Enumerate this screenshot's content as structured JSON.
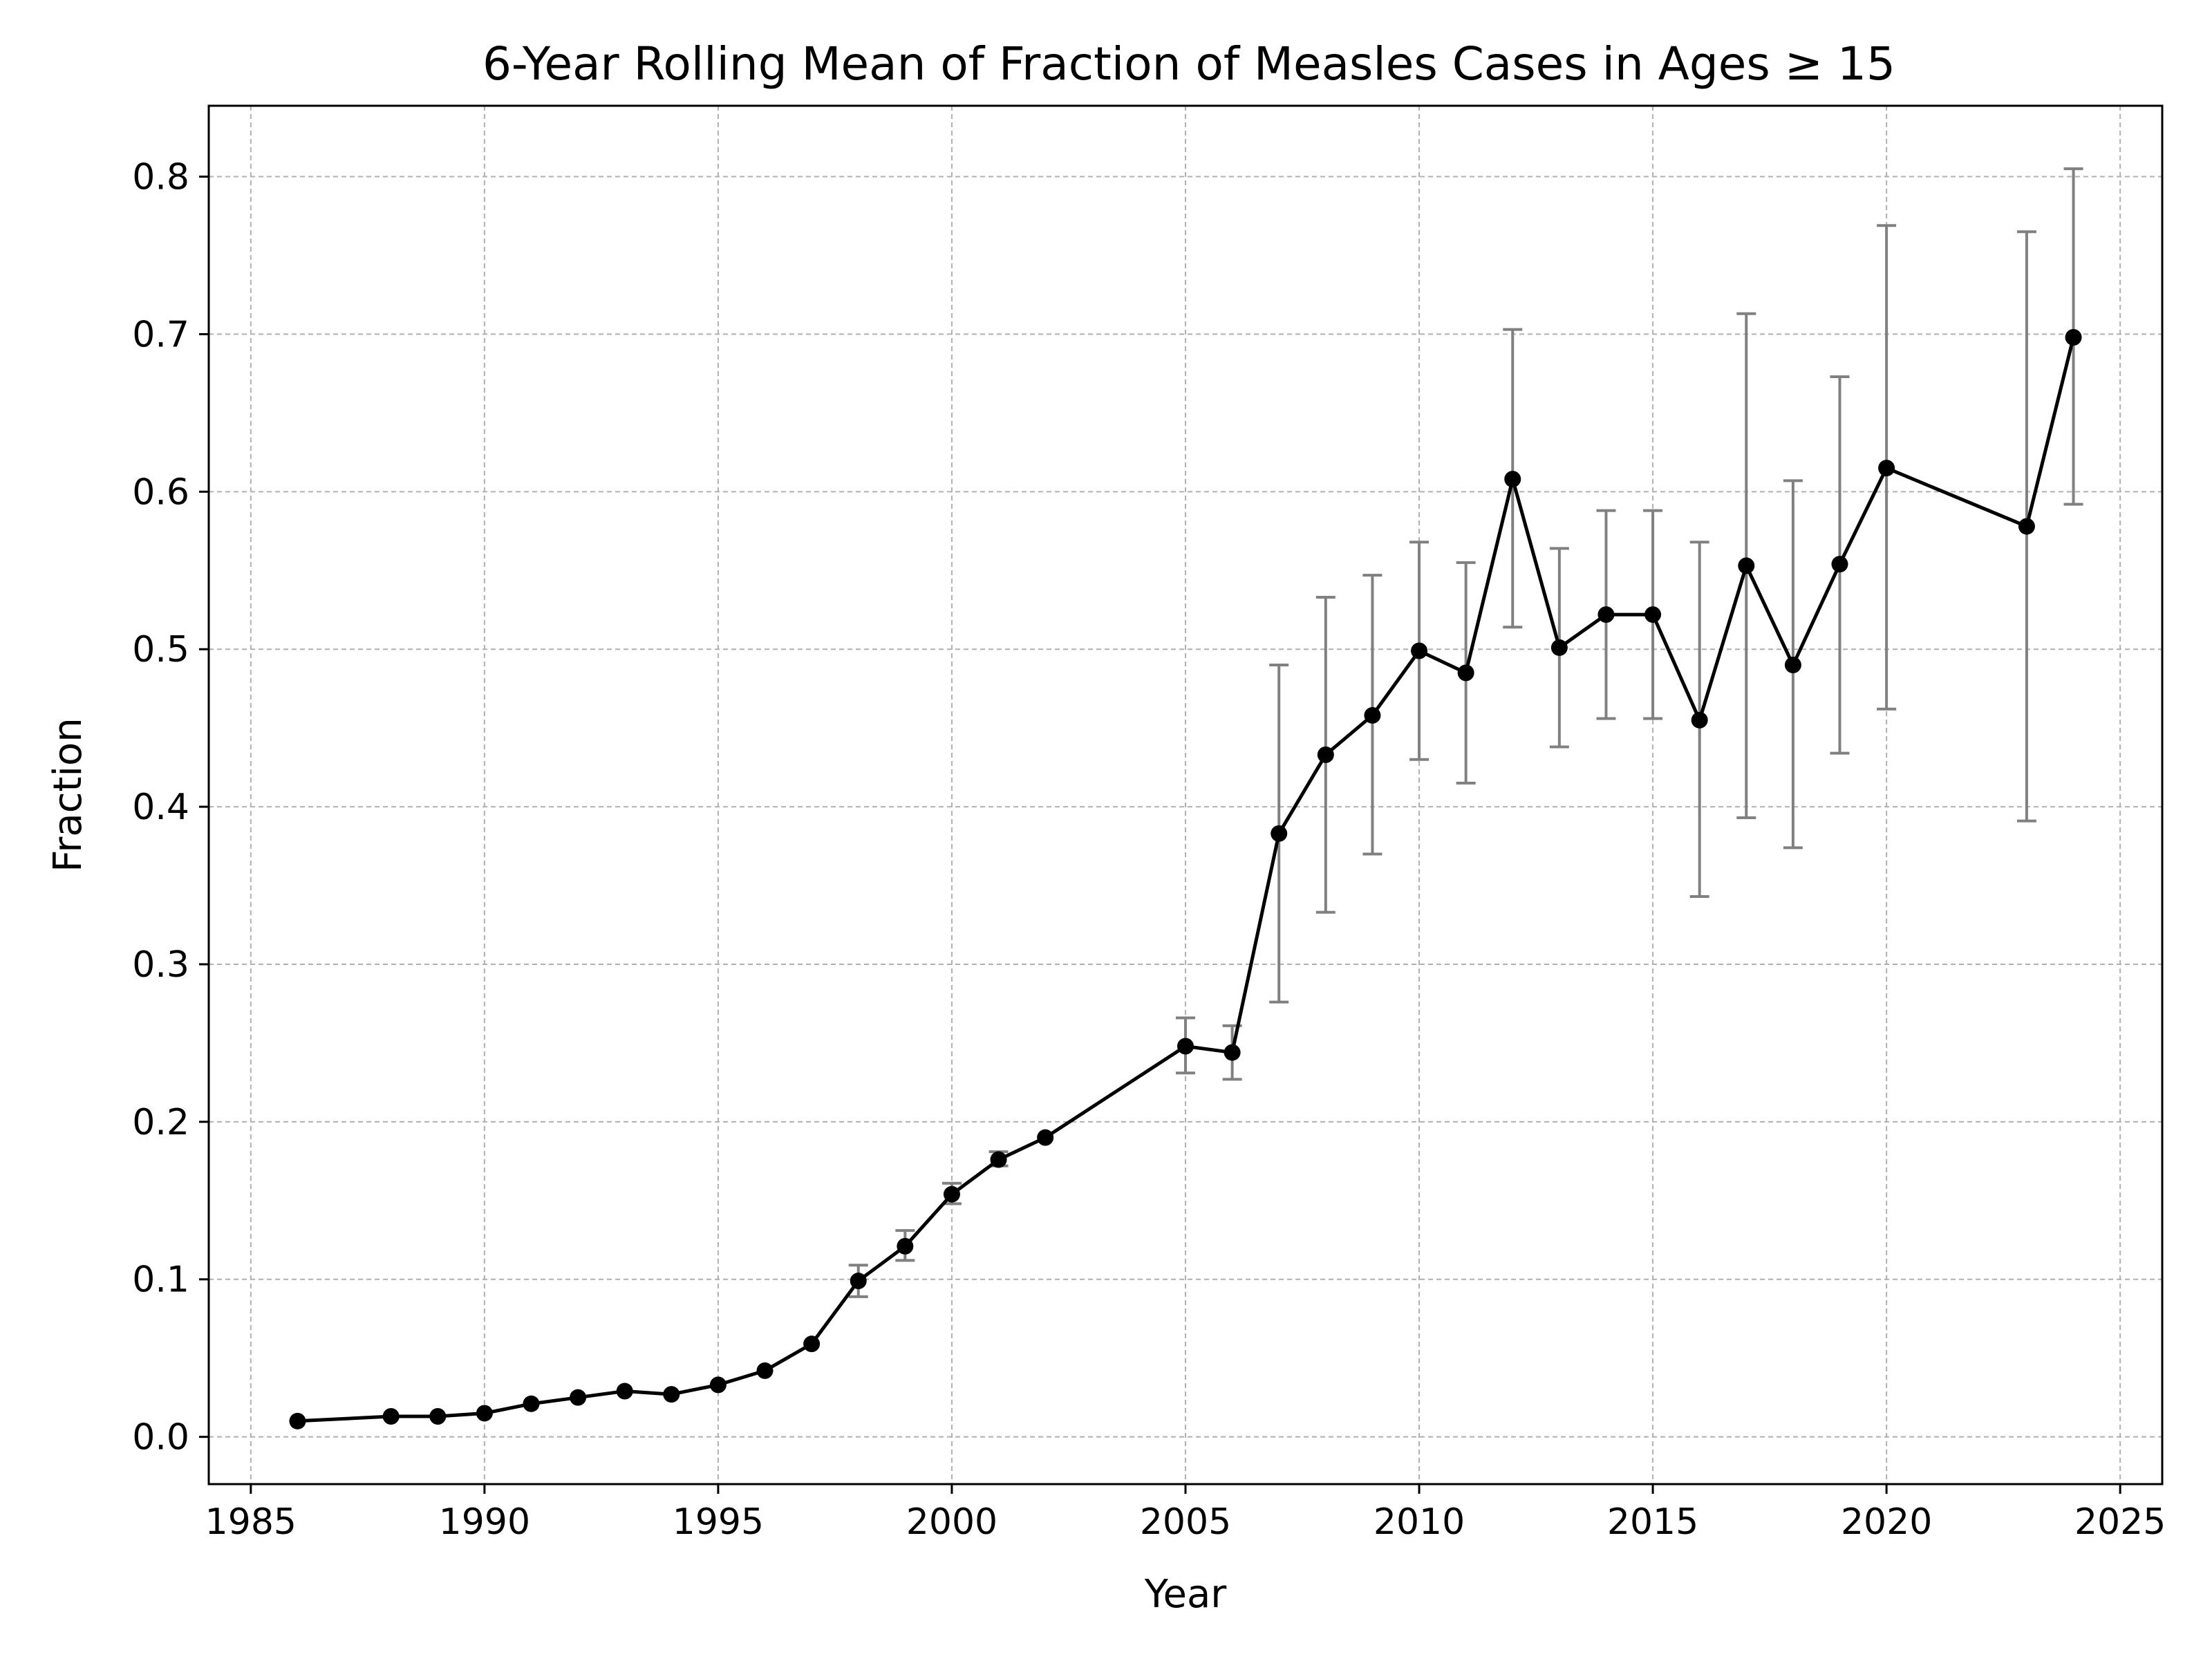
{
  "chart_data": {
    "type": "line",
    "title": "6-Year Rolling Mean of Fraction of Measles Cases in Ages ≥ 15",
    "xlabel": "Year",
    "ylabel": "Fraction",
    "xlim": [
      1984.1,
      2025.9
    ],
    "ylim": [
      -0.03,
      0.845
    ],
    "xticks": [
      1985,
      1990,
      1995,
      2000,
      2005,
      2010,
      2015,
      2020,
      2025
    ],
    "xtick_labels": [
      "1985",
      "1990",
      "1995",
      "2000",
      "2005",
      "2010",
      "2015",
      "2020",
      "2025"
    ],
    "yticks": [
      0.0,
      0.1,
      0.2,
      0.3,
      0.4,
      0.5,
      0.6,
      0.7,
      0.8
    ],
    "ytick_labels": [
      "0.0",
      "0.1",
      "0.2",
      "0.3",
      "0.4",
      "0.5",
      "0.6",
      "0.7",
      "0.8"
    ],
    "grid": true,
    "legend": "none",
    "series": [
      {
        "line_color": "#000000",
        "marker": "circle",
        "error_bar_color": "#808080",
        "points": [
          {
            "x": 1986,
            "y": 0.01
          },
          {
            "x": 1988,
            "y": 0.013
          },
          {
            "x": 1989,
            "y": 0.013
          },
          {
            "x": 1990,
            "y": 0.015
          },
          {
            "x": 1991,
            "y": 0.021
          },
          {
            "x": 1992,
            "y": 0.025
          },
          {
            "x": 1993,
            "y": 0.029
          },
          {
            "x": 1994,
            "y": 0.027
          },
          {
            "x": 1995,
            "y": 0.033
          },
          {
            "x": 1996,
            "y": 0.042
          },
          {
            "x": 1997,
            "y": 0.059
          },
          {
            "x": 1998,
            "y": 0.099,
            "err_low": 0.089,
            "err_high": 0.109
          },
          {
            "x": 1999,
            "y": 0.121,
            "err_low": 0.112,
            "err_high": 0.131
          },
          {
            "x": 2000,
            "y": 0.154,
            "err_low": 0.148,
            "err_high": 0.161
          },
          {
            "x": 2001,
            "y": 0.176,
            "err_low": 0.172,
            "err_high": 0.181
          },
          {
            "x": 2002,
            "y": 0.19
          },
          {
            "x": 2005,
            "y": 0.248,
            "err_low": 0.231,
            "err_high": 0.266
          },
          {
            "x": 2006,
            "y": 0.244,
            "err_low": 0.227,
            "err_high": 0.261
          },
          {
            "x": 2007,
            "y": 0.383,
            "err_low": 0.276,
            "err_high": 0.49
          },
          {
            "x": 2008,
            "y": 0.433,
            "err_low": 0.333,
            "err_high": 0.533
          },
          {
            "x": 2009,
            "y": 0.458,
            "err_low": 0.37,
            "err_high": 0.547
          },
          {
            "x": 2010,
            "y": 0.499,
            "err_low": 0.43,
            "err_high": 0.568
          },
          {
            "x": 2011,
            "y": 0.485,
            "err_low": 0.415,
            "err_high": 0.555
          },
          {
            "x": 2012,
            "y": 0.608,
            "err_low": 0.514,
            "err_high": 0.703
          },
          {
            "x": 2013,
            "y": 0.501,
            "err_low": 0.438,
            "err_high": 0.564
          },
          {
            "x": 2014,
            "y": 0.522,
            "err_low": 0.456,
            "err_high": 0.588
          },
          {
            "x": 2015,
            "y": 0.522,
            "err_low": 0.456,
            "err_high": 0.588
          },
          {
            "x": 2016,
            "y": 0.455,
            "err_low": 0.343,
            "err_high": 0.568
          },
          {
            "x": 2017,
            "y": 0.553,
            "err_low": 0.393,
            "err_high": 0.713
          },
          {
            "x": 2018,
            "y": 0.49,
            "err_low": 0.374,
            "err_high": 0.607
          },
          {
            "x": 2019,
            "y": 0.554,
            "err_low": 0.434,
            "err_high": 0.673
          },
          {
            "x": 2020,
            "y": 0.615,
            "err_low": 0.462,
            "err_high": 0.769
          },
          {
            "x": 2023,
            "y": 0.578,
            "err_low": 0.391,
            "err_high": 0.765
          },
          {
            "x": 2024,
            "y": 0.698,
            "err_low": 0.592,
            "err_high": 0.805
          }
        ]
      }
    ]
  }
}
